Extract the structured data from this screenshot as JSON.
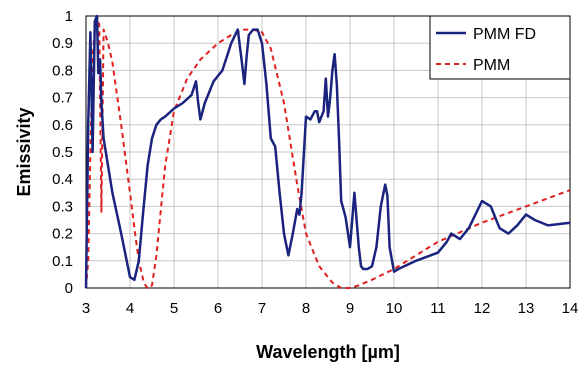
{
  "chart_data": {
    "type": "line",
    "xlabel": "Wavelength [µm]",
    "ylabel": "Emissivity",
    "xlim": [
      3,
      14
    ],
    "ylim": [
      0,
      1
    ],
    "x_ticks": [
      3,
      4,
      5,
      6,
      7,
      8,
      9,
      10,
      11,
      12,
      13,
      14
    ],
    "x_tick_labels": [
      "3",
      "4",
      "5",
      "6",
      "7",
      "8",
      "9",
      "10",
      "11",
      "12",
      "13",
      "14"
    ],
    "y_ticks": [
      0,
      0.1,
      0.2,
      0.3,
      0.4,
      0.5,
      0.6,
      0.7,
      0.8,
      0.9,
      1
    ],
    "y_tick_labels": [
      "0",
      "0.1",
      "0.2",
      "0.3",
      "0.4",
      "0.5",
      "0.6",
      "0.7",
      "0.8",
      "0.9",
      "1"
    ],
    "grid": true,
    "legend_position": "top-right",
    "series": [
      {
        "name": "PMM FD",
        "color": "#1a237e",
        "style": "solid",
        "x": [
          3.0,
          3.05,
          3.1,
          3.15,
          3.2,
          3.25,
          3.28,
          3.32,
          3.35,
          3.4,
          3.5,
          3.6,
          3.8,
          4.0,
          4.1,
          4.2,
          4.3,
          4.4,
          4.5,
          4.6,
          4.7,
          4.8,
          5.0,
          5.2,
          5.4,
          5.5,
          5.55,
          5.6,
          5.7,
          5.9,
          6.1,
          6.3,
          6.45,
          6.55,
          6.6,
          6.65,
          6.7,
          6.8,
          6.9,
          7.0,
          7.1,
          7.2,
          7.3,
          7.4,
          7.5,
          7.6,
          7.7,
          7.8,
          7.85,
          7.9,
          8.0,
          8.1,
          8.2,
          8.25,
          8.3,
          8.4,
          8.45,
          8.5,
          8.55,
          8.6,
          8.65,
          8.7,
          8.75,
          8.8,
          8.9,
          9.0,
          9.1,
          9.15,
          9.2,
          9.25,
          9.3,
          9.4,
          9.5,
          9.6,
          9.7,
          9.8,
          9.85,
          9.9,
          10.0,
          10.1,
          10.5,
          11.0,
          11.2,
          11.3,
          11.5,
          11.7,
          12.0,
          12.2,
          12.4,
          12.6,
          12.8,
          13.0,
          13.2,
          13.5,
          14.0
        ],
        "values": [
          0.0,
          0.6,
          0.94,
          0.5,
          0.98,
          1.0,
          0.79,
          0.84,
          0.68,
          0.55,
          0.45,
          0.35,
          0.2,
          0.04,
          0.03,
          0.1,
          0.28,
          0.45,
          0.55,
          0.6,
          0.62,
          0.63,
          0.66,
          0.68,
          0.71,
          0.76,
          0.68,
          0.62,
          0.68,
          0.76,
          0.8,
          0.9,
          0.95,
          0.82,
          0.75,
          0.85,
          0.93,
          0.95,
          0.95,
          0.9,
          0.75,
          0.55,
          0.52,
          0.35,
          0.2,
          0.12,
          0.2,
          0.29,
          0.27,
          0.35,
          0.63,
          0.62,
          0.65,
          0.65,
          0.61,
          0.65,
          0.77,
          0.63,
          0.7,
          0.8,
          0.86,
          0.75,
          0.55,
          0.32,
          0.26,
          0.15,
          0.35,
          0.25,
          0.15,
          0.08,
          0.07,
          0.07,
          0.08,
          0.15,
          0.3,
          0.38,
          0.34,
          0.15,
          0.06,
          0.07,
          0.1,
          0.13,
          0.17,
          0.2,
          0.18,
          0.22,
          0.32,
          0.3,
          0.22,
          0.2,
          0.23,
          0.27,
          0.25,
          0.23,
          0.24
        ]
      },
      {
        "name": "PMM",
        "color": "#e02020",
        "style": "dashed",
        "x": [
          3.0,
          3.05,
          3.1,
          3.15,
          3.2,
          3.25,
          3.3,
          3.35,
          3.4,
          3.5,
          3.6,
          3.8,
          4.0,
          4.1,
          4.2,
          4.3,
          4.35,
          4.4,
          4.45,
          4.5,
          4.6,
          4.8,
          5.0,
          5.3,
          5.6,
          6.0,
          6.3,
          6.6,
          6.8,
          7.0,
          7.2,
          7.5,
          7.8,
          8.0,
          8.3,
          8.6,
          8.8,
          9.0,
          9.2,
          9.5,
          10.0,
          10.5,
          11.0,
          12.0,
          13.0,
          14.0
        ],
        "values": [
          0.0,
          0.1,
          0.5,
          0.85,
          0.95,
          1.0,
          0.97,
          0.28,
          0.95,
          0.9,
          0.83,
          0.6,
          0.35,
          0.22,
          0.1,
          0.03,
          0.01,
          0.0,
          0.0,
          0.01,
          0.12,
          0.45,
          0.65,
          0.77,
          0.84,
          0.9,
          0.93,
          0.95,
          0.95,
          0.94,
          0.88,
          0.68,
          0.38,
          0.2,
          0.08,
          0.02,
          0.0,
          0.0,
          0.01,
          0.03,
          0.07,
          0.12,
          0.17,
          0.24,
          0.3,
          0.36
        ]
      }
    ]
  }
}
